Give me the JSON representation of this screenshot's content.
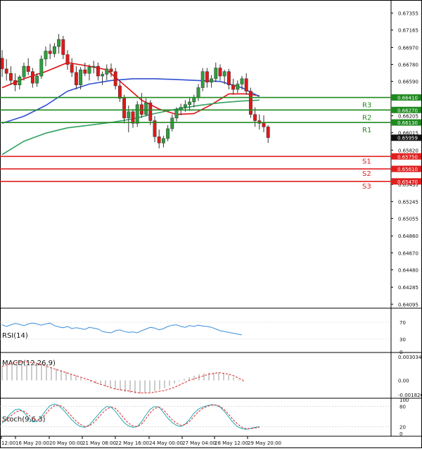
{
  "chart_data": {
    "type": "candlestick",
    "y_ticks": [
      "0.67355",
      "0.67165",
      "0.66970",
      "0.66780",
      "0.66590",
      "0.66400",
      "0.66205",
      "0.66015",
      "0.65820",
      "0.65630",
      "0.65435",
      "0.65245",
      "0.65055",
      "0.64860",
      "0.64670",
      "0.64480",
      "0.64285",
      "0.64095"
    ],
    "ylim": [
      0.6405,
      0.6747
    ],
    "x_labels": [
      "12:00",
      "16 May 20:00",
      "20 May 00:00",
      "21 May 08:00",
      "22 May 16:00",
      "24 May 00:00",
      "27 May 04:00",
      "28 May 12:00",
      "29 May 20:00"
    ],
    "current_price": "0.65959",
    "levels": [
      {
        "name": "R3",
        "price": "0.66410",
        "value": 0.6641,
        "kind": "resistance",
        "color": "#1f8a1f"
      },
      {
        "name": "R2",
        "price": "0.66270",
        "value": 0.6627,
        "kind": "resistance",
        "color": "#1f8a1f"
      },
      {
        "name": "R1",
        "price": "0.66130",
        "value": 0.6613,
        "kind": "resistance",
        "color": "#1f8a1f"
      },
      {
        "name": "S1",
        "price": "0.65750",
        "value": 0.6575,
        "kind": "support",
        "color": "#e02020"
      },
      {
        "name": "S2",
        "price": "0.65610",
        "value": 0.6561,
        "kind": "support",
        "color": "#e02020"
      },
      {
        "name": "S3",
        "price": "0.65470",
        "value": 0.6547,
        "kind": "support",
        "color": "#e02020"
      }
    ],
    "candles": [
      [
        0.6685,
        0.6694,
        0.6664,
        0.6673
      ],
      [
        0.6673,
        0.6684,
        0.666,
        0.6668
      ],
      [
        0.6668,
        0.6676,
        0.6655,
        0.666
      ],
      [
        0.666,
        0.6668,
        0.6648,
        0.6655
      ],
      [
        0.6655,
        0.6666,
        0.665,
        0.6664
      ],
      [
        0.6664,
        0.668,
        0.666,
        0.6676
      ],
      [
        0.6676,
        0.6685,
        0.6666,
        0.667
      ],
      [
        0.667,
        0.6674,
        0.6652,
        0.6657
      ],
      [
        0.6657,
        0.6668,
        0.6653,
        0.6665
      ],
      [
        0.6665,
        0.6688,
        0.6662,
        0.6684
      ],
      [
        0.6684,
        0.6698,
        0.6676,
        0.6693
      ],
      [
        0.6693,
        0.6701,
        0.6684,
        0.669
      ],
      [
        0.669,
        0.6702,
        0.6686,
        0.6698
      ],
      [
        0.6698,
        0.6712,
        0.669,
        0.6706
      ],
      [
        0.6706,
        0.671,
        0.6684,
        0.6689
      ],
      [
        0.6689,
        0.6694,
        0.6672,
        0.6678
      ],
      [
        0.6678,
        0.6685,
        0.6664,
        0.6669
      ],
      [
        0.6669,
        0.6676,
        0.665,
        0.6655
      ],
      [
        0.6655,
        0.6675,
        0.665,
        0.6672
      ],
      [
        0.6672,
        0.668,
        0.6665,
        0.6668
      ],
      [
        0.6668,
        0.6678,
        0.666,
        0.6675
      ],
      [
        0.6675,
        0.6682,
        0.6668,
        0.6676
      ],
      [
        0.6676,
        0.668,
        0.666,
        0.6665
      ],
      [
        0.6665,
        0.667,
        0.6655,
        0.6667
      ],
      [
        0.6667,
        0.6678,
        0.666,
        0.6673
      ],
      [
        0.6673,
        0.6679,
        0.6664,
        0.667
      ],
      [
        0.667,
        0.6674,
        0.665,
        0.6654
      ],
      [
        0.6654,
        0.666,
        0.6636,
        0.664
      ],
      [
        0.664,
        0.6644,
        0.6612,
        0.6618
      ],
      [
        0.6618,
        0.6632,
        0.6602,
        0.6625
      ],
      [
        0.6625,
        0.6628,
        0.6607,
        0.6612
      ],
      [
        0.6612,
        0.6637,
        0.6608,
        0.6633
      ],
      [
        0.6633,
        0.6646,
        0.6618,
        0.6622
      ],
      [
        0.6622,
        0.664,
        0.662,
        0.6635
      ],
      [
        0.6635,
        0.6638,
        0.661,
        0.6615
      ],
      [
        0.6615,
        0.662,
        0.6591,
        0.6597
      ],
      [
        0.6597,
        0.6605,
        0.6584,
        0.659
      ],
      [
        0.659,
        0.6598,
        0.6585,
        0.6595
      ],
      [
        0.6595,
        0.661,
        0.6592,
        0.6606
      ],
      [
        0.6606,
        0.6622,
        0.6603,
        0.6618
      ],
      [
        0.6618,
        0.663,
        0.6614,
        0.6627
      ],
      [
        0.6627,
        0.6634,
        0.6621,
        0.663
      ],
      [
        0.663,
        0.6638,
        0.6625,
        0.6633
      ],
      [
        0.6633,
        0.6641,
        0.6626,
        0.6636
      ],
      [
        0.6636,
        0.6644,
        0.663,
        0.6641
      ],
      [
        0.6641,
        0.6656,
        0.6637,
        0.6652
      ],
      [
        0.6652,
        0.6674,
        0.6648,
        0.667
      ],
      [
        0.667,
        0.6674,
        0.6652,
        0.6658
      ],
      [
        0.6658,
        0.6666,
        0.6652,
        0.6662
      ],
      [
        0.6662,
        0.668,
        0.6658,
        0.6674
      ],
      [
        0.6674,
        0.6678,
        0.666,
        0.6665
      ],
      [
        0.6665,
        0.6672,
        0.6656,
        0.667
      ],
      [
        0.667,
        0.6673,
        0.665,
        0.6655
      ],
      [
        0.6655,
        0.6662,
        0.6644,
        0.665
      ],
      [
        0.665,
        0.666,
        0.6646,
        0.6656
      ],
      [
        0.6656,
        0.6665,
        0.665,
        0.6662
      ],
      [
        0.6662,
        0.6668,
        0.6644,
        0.6648
      ],
      [
        0.6648,
        0.6652,
        0.6618,
        0.6622
      ],
      [
        0.6622,
        0.663,
        0.6608,
        0.6615
      ],
      [
        0.6615,
        0.6622,
        0.6605,
        0.6612
      ],
      [
        0.6612,
        0.6621,
        0.6602,
        0.6608
      ],
      [
        0.6608,
        0.661,
        0.659,
        0.6596
      ]
    ],
    "series": [
      {
        "name": "",
        "color": "#e01010",
        "values": [
          [
            0,
            0.6652
          ],
          [
            5,
            0.6662
          ],
          [
            10,
            0.667
          ],
          [
            15,
            0.668
          ],
          [
            20,
            0.6676
          ],
          [
            24,
            0.6672
          ],
          [
            28,
            0.6655
          ],
          [
            32,
            0.6638
          ],
          [
            36,
            0.6628
          ],
          [
            40,
            0.6622
          ],
          [
            44,
            0.6623
          ],
          [
            48,
            0.6633
          ],
          [
            52,
            0.6645
          ],
          [
            56,
            0.6645
          ],
          [
            59,
            0.6643
          ]
        ]
      },
      {
        "name": "",
        "color": "#3050d0",
        "values": [
          [
            0,
            0.6612
          ],
          [
            5,
            0.662
          ],
          [
            10,
            0.6632
          ],
          [
            15,
            0.6648
          ],
          [
            20,
            0.6656
          ],
          [
            25,
            0.666
          ],
          [
            30,
            0.6662
          ],
          [
            35,
            0.6662
          ],
          [
            40,
            0.6661
          ],
          [
            45,
            0.666
          ],
          [
            50,
            0.6659
          ],
          [
            55,
            0.6652
          ],
          [
            59,
            0.6642
          ]
        ]
      },
      {
        "name": "",
        "color": "#30a060",
        "values": [
          [
            0,
            0.6577
          ],
          [
            5,
            0.6592
          ],
          [
            10,
            0.6601
          ],
          [
            15,
            0.6607
          ],
          [
            20,
            0.661
          ],
          [
            25,
            0.6613
          ],
          [
            30,
            0.6617
          ],
          [
            35,
            0.6623
          ],
          [
            40,
            0.6628
          ],
          [
            45,
            0.6632
          ],
          [
            50,
            0.6635
          ],
          [
            55,
            0.6637
          ],
          [
            59,
            0.6638
          ]
        ]
      }
    ],
    "rsi": {
      "label": "RSI(14)",
      "levels": [
        "70",
        "30",
        "0"
      ],
      "values": [
        64,
        60,
        64,
        67,
        65,
        62,
        66,
        68,
        66,
        63,
        66,
        68,
        62,
        59,
        57,
        60,
        55,
        57,
        55,
        53,
        58,
        56,
        54,
        48,
        46,
        45,
        50,
        52,
        48,
        46,
        47,
        45,
        50,
        54,
        58,
        56,
        52,
        55,
        60,
        63,
        64,
        60,
        58,
        62,
        60,
        63,
        61,
        60,
        58,
        54,
        50,
        48,
        46,
        44,
        42,
        40
      ]
    },
    "macd": {
      "label": "MACD(12,26,9)",
      "ticks": [
        "0.003034",
        "0.00",
        "-0.001826"
      ],
      "ylim": [
        -0.0022,
        0.0034
      ],
      "histogram": [
        0.0019,
        0.0021,
        0.0022,
        0.0023,
        0.0022,
        0.002,
        0.0021,
        0.0023,
        0.0022,
        0.0018,
        0.0017,
        0.0015,
        0.0013,
        0.0011,
        0.0008,
        0.0006,
        0.0003,
        0.0001,
        -0.0002,
        -0.0004,
        -0.0006,
        -0.0008,
        -0.001,
        -0.0012,
        -0.0013,
        -0.0015,
        -0.0016,
        -0.0017,
        -0.0017,
        -0.0016,
        -0.0015,
        -0.0014,
        -0.0012,
        -0.001,
        -0.0007,
        -0.0004,
        -0.0001,
        0.0002,
        0.0004,
        0.0006,
        0.0008,
        0.0009,
        0.001,
        0.001,
        0.001,
        0.0009,
        0.0007,
        0.0004,
        0.0001,
        -0.0002
      ],
      "signal": [
        0.0018,
        0.002,
        0.0022,
        0.0023,
        0.0024,
        0.0024,
        0.0023,
        0.0022,
        0.002,
        0.0018,
        0.0016,
        0.0014,
        0.0012,
        0.001,
        0.0008,
        0.0006,
        0.0004,
        0.0002,
        0.0,
        -0.0003,
        -0.0005,
        -0.0007,
        -0.0009,
        -0.0011,
        -0.0012,
        -0.0013,
        -0.0014,
        -0.0015,
        -0.0016,
        -0.0016,
        -0.0016,
        -0.0015,
        -0.0014,
        -0.0013,
        -0.0011,
        -0.0009,
        -0.0006,
        -0.0003,
        0.0,
        0.0002,
        0.0004,
        0.0006,
        0.0008,
        0.0009,
        0.001,
        0.0009,
        0.0008,
        0.0006,
        0.0003,
        0.0
      ]
    },
    "stoch": {
      "label": "Stoch(9,6,3)",
      "levels": [
        "100",
        "80",
        "20",
        "0"
      ],
      "main": [
        30,
        45,
        60,
        70,
        72,
        62,
        48,
        34,
        36,
        50,
        68,
        82,
        87,
        82,
        70,
        55,
        40,
        28,
        20,
        18,
        25,
        40,
        55,
        70,
        80,
        78,
        65,
        48,
        32,
        22,
        18,
        20,
        35,
        55,
        72,
        80,
        78,
        62,
        45,
        32,
        24,
        20,
        28,
        42,
        60,
        72,
        78,
        82,
        85,
        84,
        78,
        65,
        48,
        32,
        20,
        14,
        12,
        15,
        18,
        20
      ],
      "signal": [
        35,
        40,
        52,
        62,
        68,
        66,
        56,
        44,
        38,
        44,
        58,
        72,
        82,
        84,
        78,
        64,
        50,
        36,
        26,
        20,
        22,
        32,
        46,
        60,
        72,
        78,
        74,
        60,
        44,
        30,
        22,
        20,
        28,
        44,
        62,
        74,
        78,
        70,
        55,
        40,
        30,
        24,
        26,
        36,
        50,
        64,
        74,
        80,
        84,
        84,
        80,
        70,
        56,
        40,
        28,
        18,
        14,
        14,
        16,
        18
      ]
    }
  }
}
